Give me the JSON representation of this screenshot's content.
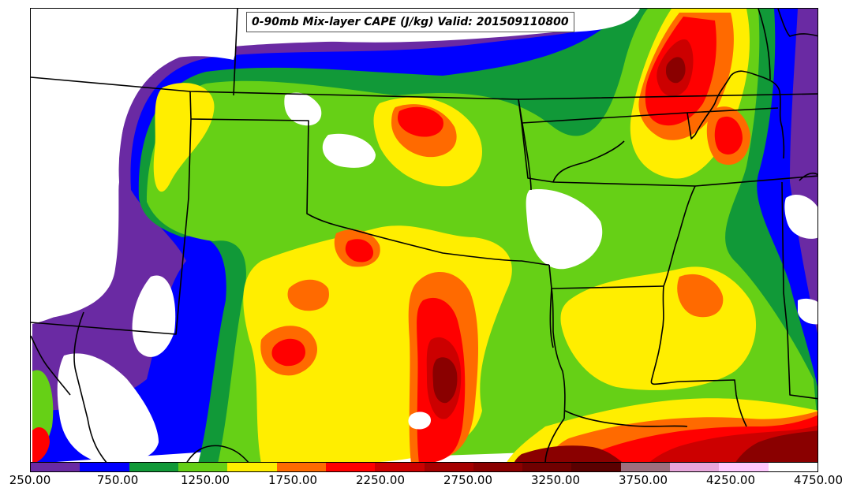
{
  "title": "0-90mb Mix-layer CAPE (J/kg) Valid: 201509110800",
  "colorbar": {
    "colors": [
      "#6a2aa3",
      "#0000ff",
      "#119938",
      "#66d016",
      "#ffee00",
      "#ff6a00",
      "#ff0000",
      "#cc0000",
      "#a50000",
      "#8a0000",
      "#700000",
      "#5a0000",
      "#9e6f7e",
      "#e8a6dc",
      "#ffc8ff",
      "#ffffff"
    ],
    "tick_labels": [
      "250.00",
      "750.00",
      "1250.00",
      "1750.00",
      "2250.00",
      "2750.00",
      "3250.00",
      "3750.00",
      "4250.00",
      "4750.00"
    ]
  },
  "map": {
    "background": "#ffffff",
    "boundary_color": "#000000",
    "layers": [
      "cape-purple",
      "cape-blue",
      "cape-dark-green",
      "cape-light-green",
      "cape-yellow",
      "cape-orange",
      "cape-red",
      "cape-dark-red",
      "cape-maroon"
    ]
  }
}
